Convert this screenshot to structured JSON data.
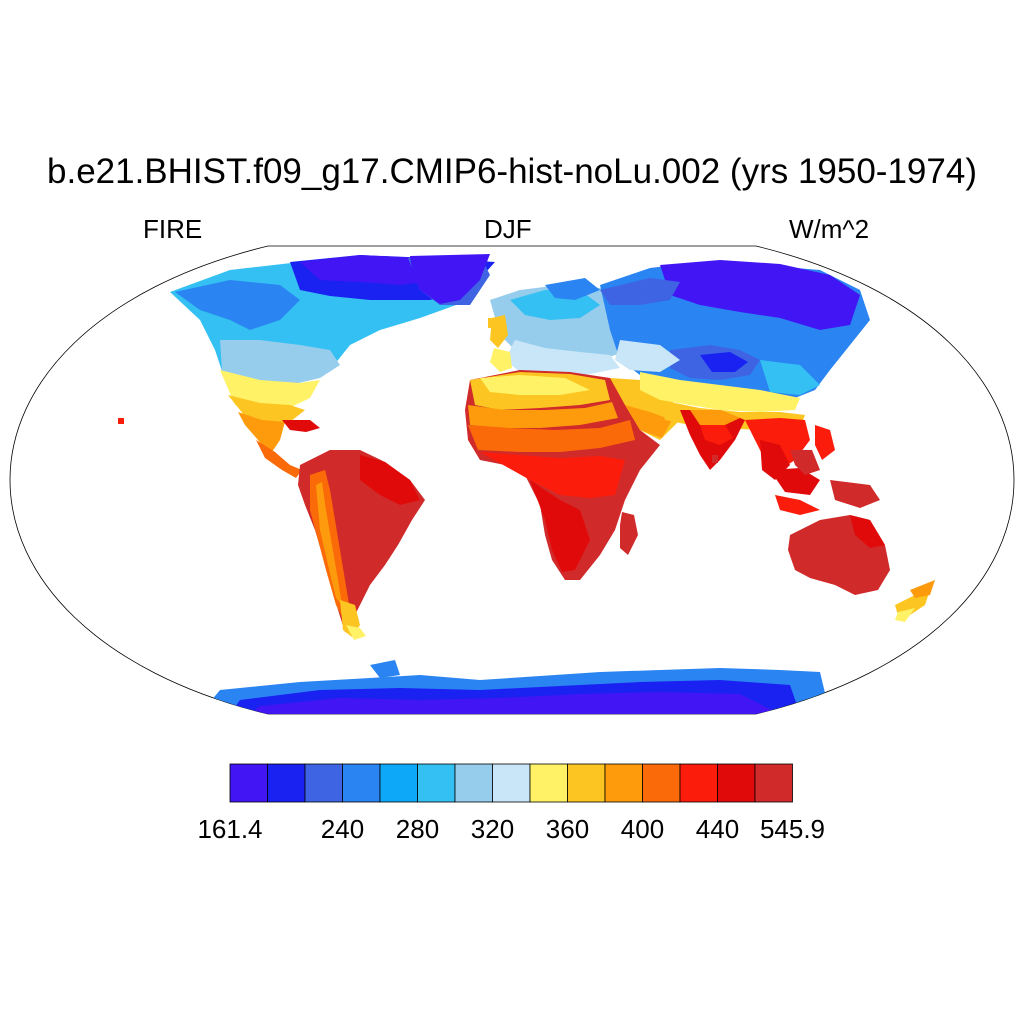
{
  "title": "b.e21.BHIST.f09_g17.CMIP6-hist-noLu.002 (yrs 1950-1974)",
  "subtitles": {
    "left": "FIRE",
    "center": "DJF",
    "right": "W/m^2"
  },
  "legend": {
    "colors": [
      "#4216f4",
      "#1a22f2",
      "#3e64e4",
      "#2a84f2",
      "#0ea8f8",
      "#34c0f2",
      "#96ccec",
      "#c8e6f8",
      "#fff266",
      "#fdc521",
      "#fd9b0c",
      "#fb6a09",
      "#fb1c0b",
      "#e10a0a",
      "#d12a2a"
    ],
    "tick_labels": [
      "161.4",
      "240",
      "280",
      "320",
      "360",
      "400",
      "440",
      "545.9"
    ],
    "tick_positions": [
      0,
      3,
      4,
      5,
      6,
      7,
      8,
      9,
      10,
      11,
      12,
      13,
      14,
      15
    ],
    "visible_labels": {
      "0": "161.4",
      "3": "240",
      "5": "280",
      "7": "320",
      "9": "360",
      "11": "400",
      "13": "440",
      "15": "545.9"
    }
  }
}
